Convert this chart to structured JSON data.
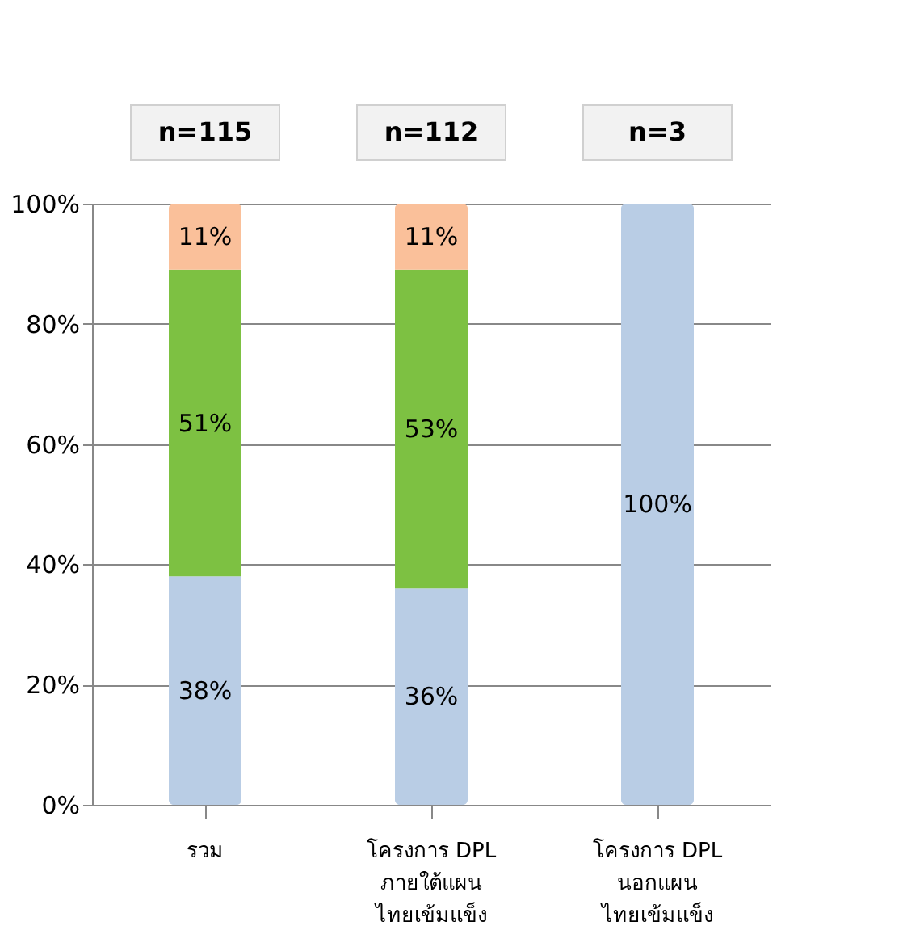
{
  "chart_data": {
    "type": "bar",
    "stacked": true,
    "categories": [
      "รวม",
      "โครงการ DPL\nภายใต้แผน\nไทยเข้มแข็ง",
      "โครงการ DPL\nนอกแผน\nไทยเข้มแข็ง"
    ],
    "series": [
      {
        "color": "#b9cde5",
        "values": [
          38,
          36,
          100
        ],
        "value_labels": [
          "38%",
          "36%",
          "100%"
        ]
      },
      {
        "color": "#7dc142",
        "values": [
          51,
          53,
          null
        ],
        "value_labels": [
          "51%",
          "53%",
          null
        ]
      },
      {
        "color": "#fac09a",
        "values": [
          11,
          11,
          null
        ],
        "value_labels": [
          "11%",
          "11%",
          null
        ]
      }
    ],
    "ylim": [
      0,
      100
    ],
    "yticks": [
      {
        "value": 0,
        "label": "0%"
      },
      {
        "value": 20,
        "label": "20%"
      },
      {
        "value": 40,
        "label": "40%"
      },
      {
        "value": 60,
        "label": "60%"
      },
      {
        "value": 80,
        "label": "80%"
      },
      {
        "value": 100,
        "label": "100%"
      }
    ],
    "grid": "y",
    "annotations": [
      "n=115",
      "n=112",
      "n=3"
    ]
  }
}
